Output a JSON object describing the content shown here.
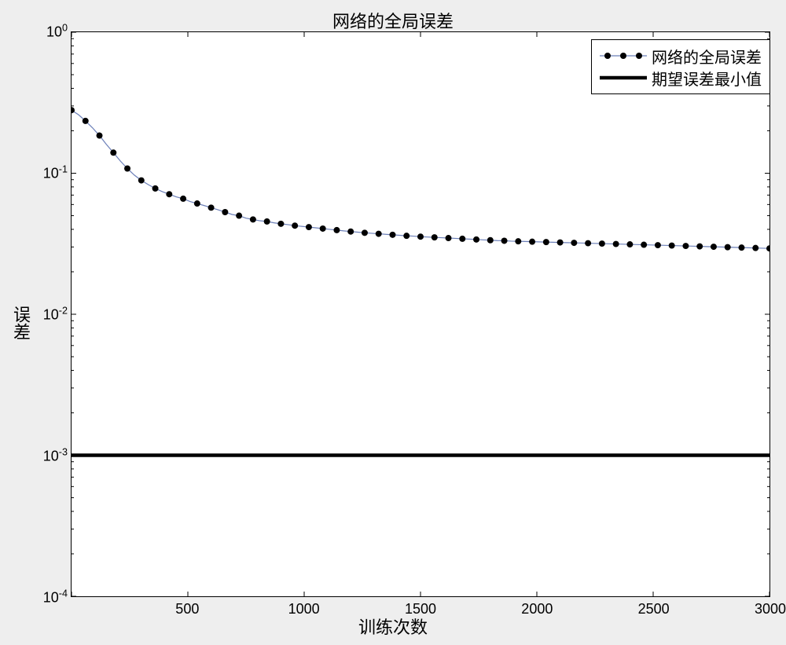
{
  "title": "网络的全局误差",
  "xlabel": "训练次数",
  "ylabel": "误差",
  "chart": {
    "type": "line",
    "xlim": [
      0,
      3000
    ],
    "ylim_exp": [
      -4,
      0
    ],
    "xtick_step": 500,
    "xtick_labels": [
      "500",
      "1000",
      "1500",
      "2000",
      "2500",
      "3000"
    ],
    "ytick_exp": [
      -4,
      -3,
      -2,
      -1,
      0
    ],
    "ytick_labels_base": "10",
    "background_color": "#ffffff",
    "axis_color": "#000000",
    "tick_len": 6,
    "minor_tick_len": 3,
    "series": [
      {
        "name": "网络的全局误差",
        "line_color": "#6b7fb8",
        "line_width": 1.2,
        "marker": "circle",
        "marker_color": "#000000",
        "marker_size": 4,
        "marker_step": 60,
        "x": [
          0,
          30,
          60,
          90,
          120,
          150,
          180,
          210,
          240,
          270,
          300,
          330,
          360,
          390,
          420,
          450,
          480,
          510,
          540,
          570,
          600,
          630,
          660,
          690,
          720,
          750,
          780,
          810,
          840,
          870,
          900,
          930,
          960,
          990,
          1020,
          1050,
          1080,
          1110,
          1140,
          1170,
          1200,
          1230,
          1260,
          1290,
          1320,
          1350,
          1380,
          1410,
          1440,
          1470,
          1500,
          1530,
          1560,
          1590,
          1620,
          1650,
          1680,
          1710,
          1740,
          1770,
          1800,
          1830,
          1860,
          1890,
          1920,
          1950,
          1980,
          2010,
          2040,
          2070,
          2100,
          2130,
          2160,
          2190,
          2220,
          2250,
          2280,
          2310,
          2340,
          2370,
          2400,
          2430,
          2460,
          2490,
          2520,
          2550,
          2580,
          2610,
          2640,
          2670,
          2700,
          2730,
          2760,
          2790,
          2820,
          2850,
          2880,
          2910,
          2940,
          2970,
          3000
        ],
        "y": [
          0.28,
          0.26,
          0.235,
          0.21,
          0.185,
          0.16,
          0.14,
          0.122,
          0.108,
          0.097,
          0.089,
          0.083,
          0.078,
          0.074,
          0.071,
          0.068,
          0.066,
          0.063,
          0.061,
          0.059,
          0.057,
          0.055,
          0.053,
          0.051,
          0.05,
          0.048,
          0.047,
          0.046,
          0.0455,
          0.0445,
          0.0438,
          0.0432,
          0.0425,
          0.042,
          0.0415,
          0.041,
          0.0405,
          0.04,
          0.0395,
          0.039,
          0.0386,
          0.0382,
          0.0378,
          0.0375,
          0.0372,
          0.0369,
          0.0366,
          0.0363,
          0.036,
          0.0358,
          0.0355,
          0.0353,
          0.0351,
          0.0349,
          0.0347,
          0.0345,
          0.0343,
          0.0341,
          0.0339,
          0.0337,
          0.0335,
          0.0333,
          0.0332,
          0.033,
          0.0329,
          0.0328,
          0.0327,
          0.0326,
          0.0325,
          0.0324,
          0.0323,
          0.0322,
          0.0321,
          0.032,
          0.0319,
          0.0318,
          0.0317,
          0.0316,
          0.0315,
          0.0314,
          0.0313,
          0.0312,
          0.0311,
          0.031,
          0.0309,
          0.0308,
          0.0307,
          0.0306,
          0.0305,
          0.0304,
          0.0303,
          0.0302,
          0.0301,
          0.03,
          0.0299,
          0.0298,
          0.0297,
          0.0296,
          0.0295,
          0.0294,
          0.0293
        ]
      },
      {
        "name": "期望误差最小值",
        "line_color": "#000000",
        "line_width": 4.5,
        "marker": "none",
        "x": [
          0,
          3000
        ],
        "y": [
          0.001,
          0.001
        ]
      }
    ]
  },
  "legend": {
    "position": "upper-right",
    "items": [
      {
        "label": "网络的全局误差",
        "key": 0
      },
      {
        "label": "期望误差最小值",
        "key": 1
      }
    ]
  }
}
